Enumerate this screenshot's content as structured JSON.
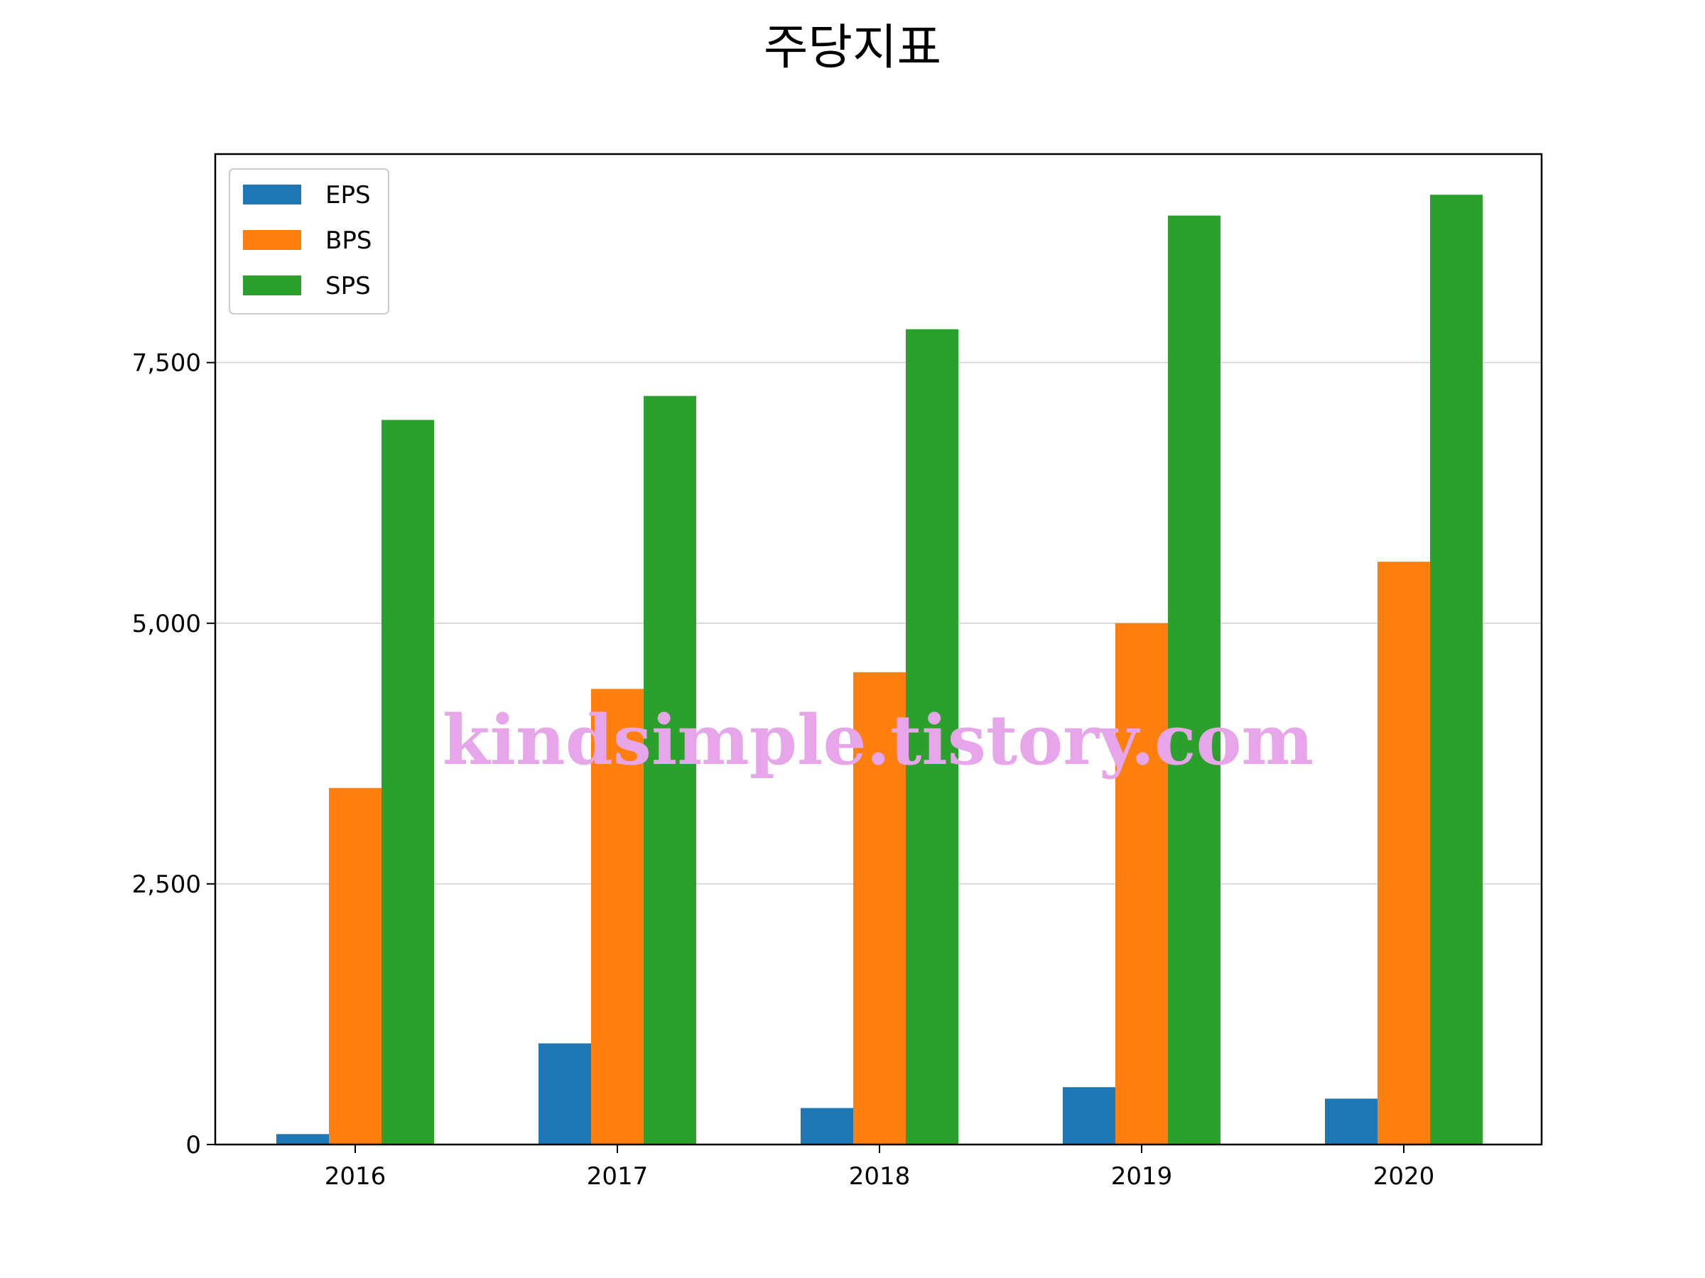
{
  "chart_data": {
    "type": "bar",
    "title": "주당지표",
    "xlabel": "",
    "ylabel": "",
    "categories": [
      "2016",
      "2017",
      "2018",
      "2019",
      "2020"
    ],
    "series": [
      {
        "name": "EPS",
        "color": "#1f77b4",
        "values": [
          100,
          970,
          350,
          550,
          440
        ]
      },
      {
        "name": "BPS",
        "color": "#ff7f0e",
        "values": [
          3420,
          4370,
          4530,
          5000,
          5590
        ]
      },
      {
        "name": "SPS",
        "color": "#2ca02c",
        "values": [
          6950,
          7180,
          7820,
          8910,
          9110
        ]
      }
    ],
    "ylim": [
      0,
      9500
    ],
    "yticks": [
      0,
      2500,
      5000,
      7500
    ],
    "ytick_labels": [
      "0",
      "2,500",
      "5,000",
      "7,500"
    ],
    "grid": "horizontal",
    "legend_position": "top-left",
    "watermark": "kindsimple.tistory.com"
  }
}
